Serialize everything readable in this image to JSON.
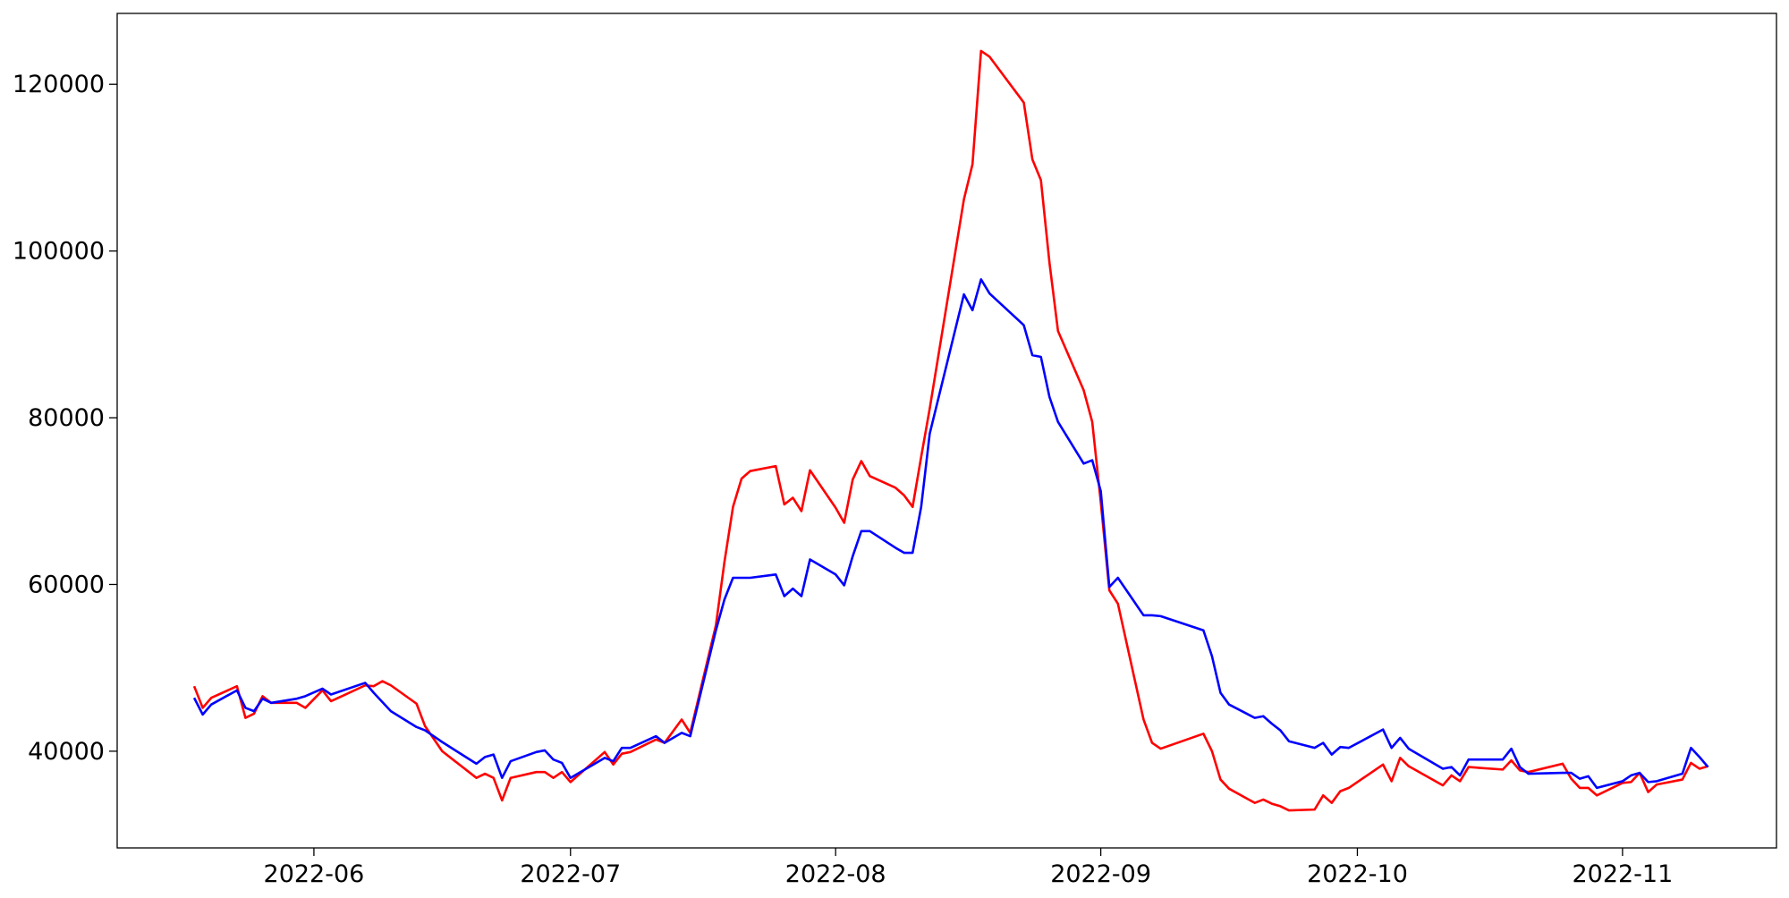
{
  "chart_data": {
    "type": "line",
    "x": [
      "2022-05-18",
      "2022-05-19",
      "2022-05-20",
      "2022-05-23",
      "2022-05-24",
      "2022-05-25",
      "2022-05-26",
      "2022-05-27",
      "2022-05-30",
      "2022-05-31",
      "2022-06-02",
      "2022-06-03",
      "2022-06-07",
      "2022-06-08",
      "2022-06-09",
      "2022-06-10",
      "2022-06-13",
      "2022-06-14",
      "2022-06-16",
      "2022-06-20",
      "2022-06-21",
      "2022-06-22",
      "2022-06-23",
      "2022-06-24",
      "2022-06-27",
      "2022-06-28",
      "2022-06-29",
      "2022-06-30",
      "2022-07-01",
      "2022-07-05",
      "2022-07-06",
      "2022-07-07",
      "2022-07-08",
      "2022-07-11",
      "2022-07-12",
      "2022-07-14",
      "2022-07-15",
      "2022-07-18",
      "2022-07-19",
      "2022-07-20",
      "2022-07-21",
      "2022-07-22",
      "2022-07-25",
      "2022-07-26",
      "2022-07-27",
      "2022-07-28",
      "2022-07-29",
      "2022-08-01",
      "2022-08-02",
      "2022-08-03",
      "2022-08-04",
      "2022-08-05",
      "2022-08-08",
      "2022-08-09",
      "2022-08-10",
      "2022-08-11",
      "2022-08-12",
      "2022-08-16",
      "2022-08-17",
      "2022-08-18",
      "2022-08-19",
      "2022-08-23",
      "2022-08-24",
      "2022-08-25",
      "2022-08-26",
      "2022-08-27",
      "2022-08-30",
      "2022-08-31",
      "2022-09-01",
      "2022-09-02",
      "2022-09-03",
      "2022-09-06",
      "2022-09-07",
      "2022-09-08",
      "2022-09-13",
      "2022-09-14",
      "2022-09-15",
      "2022-09-16",
      "2022-09-19",
      "2022-09-20",
      "2022-09-21",
      "2022-09-22",
      "2022-09-23",
      "2022-09-26",
      "2022-09-27",
      "2022-09-28",
      "2022-09-29",
      "2022-09-30",
      "2022-10-04",
      "2022-10-05",
      "2022-10-06",
      "2022-10-07",
      "2022-10-11",
      "2022-10-12",
      "2022-10-13",
      "2022-10-14",
      "2022-10-18",
      "2022-10-19",
      "2022-10-20",
      "2022-10-21",
      "2022-10-25",
      "2022-10-26",
      "2022-10-27",
      "2022-10-28",
      "2022-10-29",
      "2022-11-01",
      "2022-11-02",
      "2022-11-03",
      "2022-11-04",
      "2022-11-05",
      "2022-11-08",
      "2022-11-09",
      "2022-11-10",
      "2022-11-11"
    ],
    "series": [
      {
        "color": "#ff0000",
        "values": [
          47800,
          45200,
          46400,
          47800,
          44000,
          44500,
          46600,
          45800,
          45800,
          45200,
          47300,
          46000,
          47900,
          47800,
          48400,
          47900,
          45700,
          43000,
          40000,
          36800,
          37300,
          36800,
          34100,
          36800,
          37500,
          37500,
          36800,
          37500,
          36300,
          39900,
          38400,
          39700,
          39900,
          41400,
          41000,
          43800,
          42200,
          55100,
          62700,
          69300,
          72700,
          73600,
          74200,
          69600,
          70400,
          68800,
          73700,
          69200,
          67400,
          72600,
          74800,
          73000,
          71600,
          70700,
          69300,
          75300,
          81100,
          106200,
          110400,
          124000,
          123300,
          117800,
          111000,
          108500,
          98600,
          90400,
          83300,
          79500,
          69900,
          59300,
          57700,
          43800,
          41000,
          40300,
          42100,
          40000,
          36600,
          35500,
          33800,
          34200,
          33700,
          33400,
          32900,
          33000,
          34700,
          33800,
          35200,
          35600,
          38400,
          36400,
          39200,
          38200,
          35900,
          37100,
          36400,
          38100,
          37800,
          38900,
          37700,
          37500,
          38500,
          36700,
          35600,
          35600,
          34700,
          36200,
          36300,
          37400,
          35100,
          36000,
          36600,
          38600,
          37900,
          38200
        ]
      },
      {
        "color": "#0000ff",
        "values": [
          46400,
          44400,
          45600,
          47300,
          45200,
          44800,
          46300,
          45800,
          46300,
          46600,
          47500,
          46800,
          48200,
          47000,
          45900,
          44800,
          42900,
          42500,
          41100,
          38500,
          39300,
          39600,
          36800,
          38800,
          39900,
          40100,
          39000,
          38600,
          36800,
          39200,
          38800,
          40400,
          40400,
          41800,
          41000,
          42200,
          41800,
          54500,
          58200,
          60800,
          60800,
          60800,
          61200,
          58600,
          59500,
          58600,
          63000,
          61200,
          59900,
          63400,
          66400,
          66400,
          64400,
          63800,
          63800,
          69300,
          78100,
          94800,
          92900,
          96600,
          94900,
          91100,
          87500,
          87300,
          82500,
          79500,
          74500,
          74900,
          71200,
          59700,
          60800,
          56300,
          56300,
          56200,
          54500,
          51400,
          47000,
          45600,
          44000,
          44200,
          43300,
          42500,
          41200,
          40400,
          41000,
          39600,
          40500,
          40400,
          42600,
          40400,
          41600,
          40300,
          37900,
          38100,
          37100,
          39000,
          39000,
          40300,
          38100,
          37300,
          37400,
          37400,
          36700,
          37000,
          35600,
          36400,
          37100,
          37400,
          36300,
          36400,
          37300,
          40400,
          39300,
          38100
        ]
      }
    ],
    "xlim": [
      "2022-05-09",
      "2022-11-19"
    ],
    "xticks": [
      {
        "value": "2022-06-01",
        "label": "2022-06"
      },
      {
        "value": "2022-07-01",
        "label": "2022-07"
      },
      {
        "value": "2022-08-01",
        "label": "2022-08"
      },
      {
        "value": "2022-09-01",
        "label": "2022-09"
      },
      {
        "value": "2022-10-01",
        "label": "2022-10"
      },
      {
        "value": "2022-11-01",
        "label": "2022-11"
      }
    ],
    "ylim": [
      28400,
      128500
    ],
    "yticks": [
      40000,
      60000,
      80000,
      100000,
      120000
    ]
  }
}
